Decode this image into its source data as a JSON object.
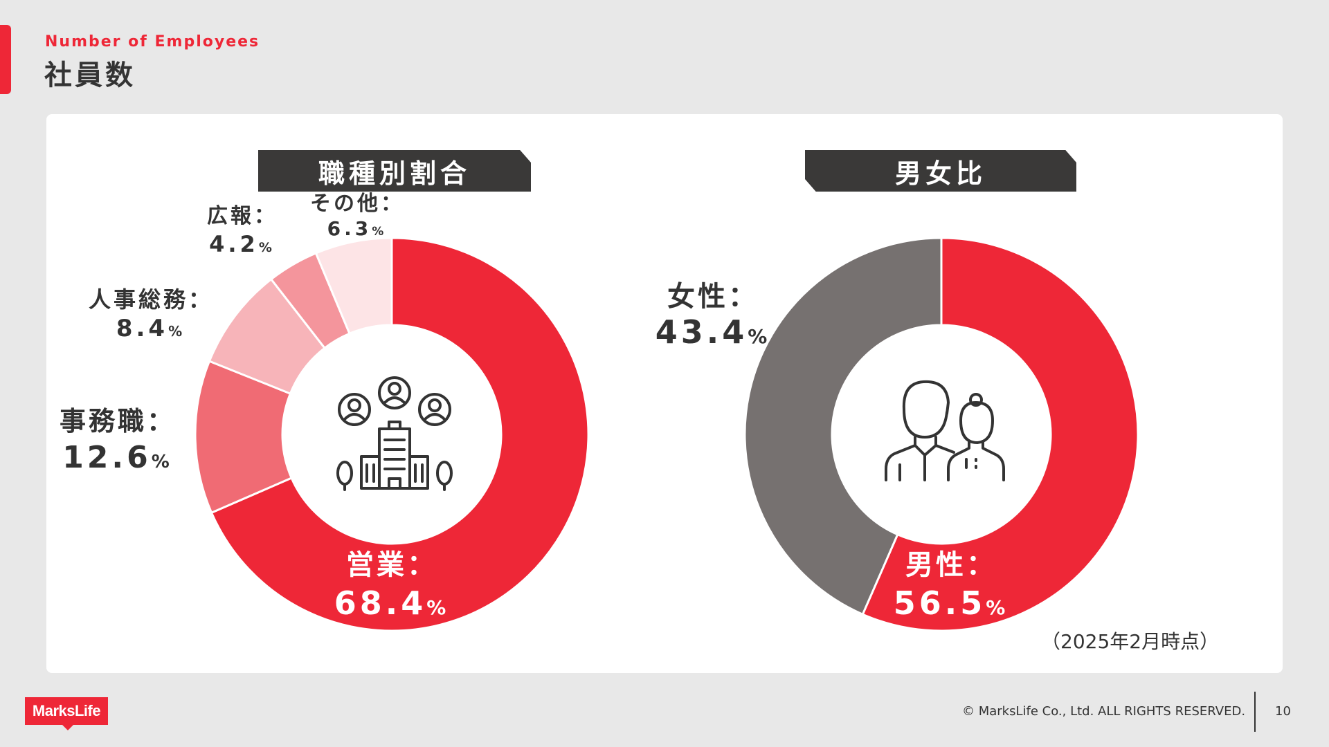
{
  "header": {
    "subtitle": "Number of Employees",
    "title": "社員数"
  },
  "note": "（2025年2月時点）",
  "footer": {
    "logo": "MarksLife",
    "copyright": "© MarksLife Co., Ltd. ALL RIGHTS RESERVED.",
    "page": "10"
  },
  "icons": [
    "office-building-people-icon",
    "man-woman-icon"
  ],
  "chart_data": [
    {
      "type": "pie",
      "variant": "donut",
      "title": "職種別割合",
      "series": [
        {
          "name": "営業：",
          "value": 68.4,
          "display": "68.4",
          "unit": "%",
          "color": "#ee2737"
        },
        {
          "name": "事務職：",
          "value": 12.6,
          "display": "12.6",
          "unit": "%",
          "color": "#f06b74"
        },
        {
          "name": "人事総務：",
          "value": 8.4,
          "display": "8.4",
          "unit": "%",
          "color": "#f7b4b9"
        },
        {
          "name": "広報：",
          "value": 4.2,
          "display": "4.2",
          "unit": "%",
          "color": "#f4959c"
        },
        {
          "name": "その他：",
          "value": 6.3,
          "display": "6.3",
          "unit": "%",
          "color": "#fde4e6"
        }
      ]
    },
    {
      "type": "pie",
      "variant": "donut",
      "title": "男女比",
      "series": [
        {
          "name": "男性：",
          "value": 56.5,
          "display": "56.5",
          "unit": "%",
          "color": "#ee2737"
        },
        {
          "name": "女性：",
          "value": 43.4,
          "display": "43.4",
          "unit": "%",
          "color": "#767170"
        }
      ]
    }
  ]
}
